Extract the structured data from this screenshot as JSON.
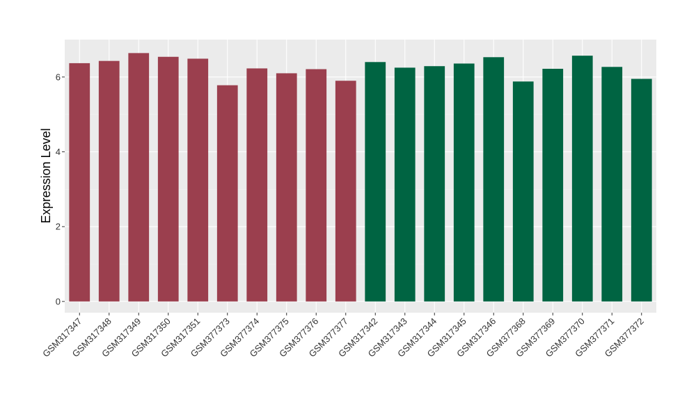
{
  "chart_data": {
    "type": "bar",
    "title": "",
    "xlabel": "",
    "ylabel": "Expression Level",
    "ylim": [
      -0.3,
      7.0
    ],
    "yticks": [
      0,
      2,
      4,
      6
    ],
    "yticks_labels": [
      "0",
      "2",
      "4",
      "6"
    ],
    "grid": true,
    "legend": "none",
    "categories": [
      "GSM317347",
      "GSM317348",
      "GSM317349",
      "GSM317350",
      "GSM317351",
      "GSM377373",
      "GSM377374",
      "GSM377375",
      "GSM377376",
      "GSM377377",
      "GSM317342",
      "GSM317343",
      "GSM317344",
      "GSM317345",
      "GSM317346",
      "GSM377368",
      "GSM377369",
      "GSM377370",
      "GSM377371",
      "GSM377372"
    ],
    "values": [
      6.37,
      6.43,
      6.64,
      6.54,
      6.49,
      5.78,
      6.23,
      6.1,
      6.21,
      5.9,
      6.4,
      6.25,
      6.29,
      6.36,
      6.53,
      5.88,
      6.22,
      6.57,
      6.27,
      5.95
    ],
    "groups": [
      0,
      0,
      0,
      0,
      0,
      0,
      0,
      0,
      0,
      0,
      1,
      1,
      1,
      1,
      1,
      1,
      1,
      1,
      1,
      1
    ],
    "group_colors": [
      "#9b3f4e",
      "#006442"
    ]
  },
  "colors": {
    "panel_background": "#ebebeb",
    "grid_major": "#ffffff",
    "grid_minor": "#f2f2f2"
  }
}
